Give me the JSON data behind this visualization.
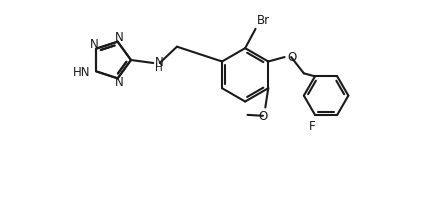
{
  "bg_color": "#ffffff",
  "line_color": "#1a1a1a",
  "line_width": 1.5,
  "figsize": [
    4.31,
    2.09
  ],
  "dpi": 100,
  "xlim": [
    -0.5,
    9.5
  ],
  "ylim": [
    -3.5,
    3.5
  ]
}
